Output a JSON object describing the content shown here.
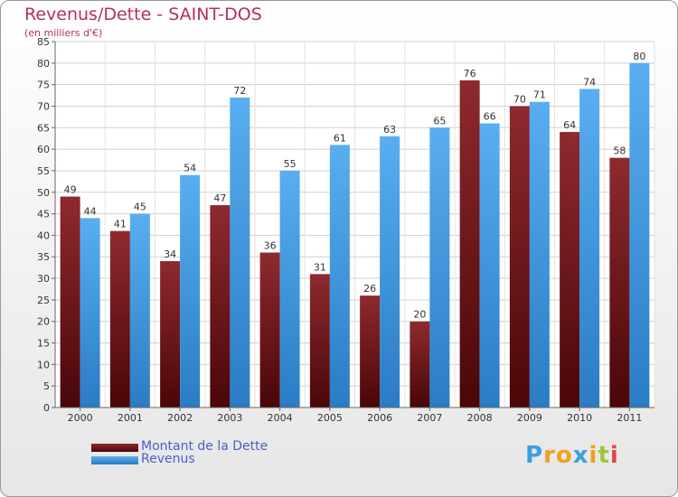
{
  "header": {
    "title": "Revenus/Dette - SAINT-DOS",
    "subtitle": "(en milliers d'€)"
  },
  "legend": {
    "items": [
      {
        "label": "Montant de la Dette",
        "color": "#7a1e22"
      },
      {
        "label": "Revenus",
        "color": "#3d9be3"
      }
    ]
  },
  "logo": {
    "letters": [
      "P",
      "r",
      "o",
      "x",
      "i",
      "t",
      "i"
    ],
    "colors": [
      "#3aa0e0",
      "#f0a020",
      "#f0a020",
      "#3aa0e0",
      "#f0a020",
      "#9ac83a",
      "#e04848"
    ]
  },
  "chart_data": {
    "type": "bar",
    "title": "Revenus/Dette - SAINT-DOS",
    "subtitle": "(en milliers d'€)",
    "xlabel": "",
    "ylabel": "",
    "categories": [
      "2000",
      "2001",
      "2002",
      "2003",
      "2004",
      "2005",
      "2006",
      "2007",
      "2008",
      "2009",
      "2010",
      "2011"
    ],
    "series": [
      {
        "name": "Montant de la Dette",
        "color": "#7a1e22",
        "values": [
          49,
          41,
          34,
          47,
          36,
          31,
          26,
          20,
          76,
          70,
          64,
          58
        ]
      },
      {
        "name": "Revenus",
        "color": "#3d9be3",
        "values": [
          44,
          45,
          54,
          72,
          55,
          61,
          63,
          65,
          66,
          71,
          74,
          80
        ]
      }
    ],
    "ylim": [
      0,
      85
    ],
    "yticks": [
      0,
      5,
      10,
      15,
      20,
      25,
      30,
      35,
      40,
      45,
      50,
      55,
      60,
      65,
      70,
      75,
      80,
      85
    ],
    "grid": true,
    "legend": "bottom-left"
  }
}
